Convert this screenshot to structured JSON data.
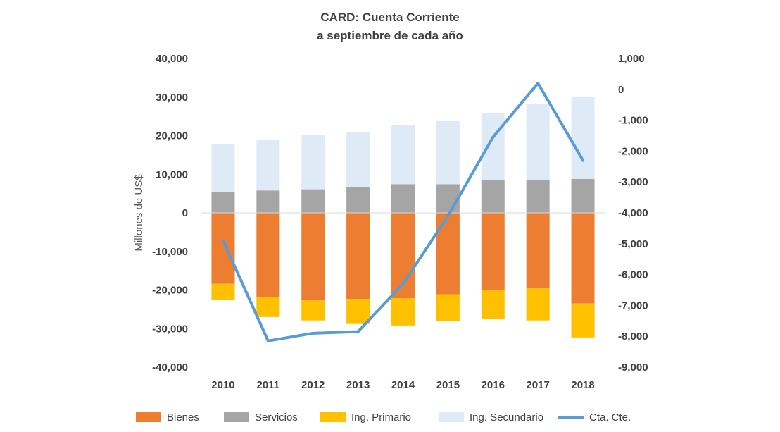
{
  "chart_data": {
    "type": "bar",
    "stacked": true,
    "title": "CARD: Cuenta Corriente",
    "subtitle": "a septiembre de cada año",
    "ylabel": "Millones de US$",
    "y2label": "",
    "categories": [
      "2010",
      "2011",
      "2012",
      "2013",
      "2014",
      "2015",
      "2016",
      "2017",
      "2018"
    ],
    "ylim": [
      -40000,
      40000
    ],
    "y2lim": [
      -9000,
      1000
    ],
    "yticks": [
      "40,000",
      "30,000",
      "20,000",
      "10,000",
      "0",
      "-10,000",
      "-20,000",
      "-30,000",
      "-40,000"
    ],
    "y2ticks": [
      "1,000",
      "0",
      "-1,000",
      "-2,000",
      "-3,000",
      "-4,000",
      "-5,000",
      "-6,000",
      "-7,000",
      "-8,000",
      "-9,000"
    ],
    "series": [
      {
        "name": "Bienes",
        "type": "bar",
        "axis": "left",
        "color": "#ED7D31",
        "values": [
          -18400,
          -21800,
          -22700,
          -22300,
          -22100,
          -21100,
          -20100,
          -19600,
          -23500
        ]
      },
      {
        "name": "Servicios",
        "type": "bar",
        "axis": "left",
        "color": "#A5A5A5",
        "values": [
          5500,
          5800,
          6100,
          6600,
          7400,
          7400,
          8400,
          8400,
          8800
        ]
      },
      {
        "name": "Ing. Primario",
        "type": "bar",
        "axis": "left",
        "color": "#FFC000",
        "values": [
          -4100,
          -5200,
          -5200,
          -6500,
          -7100,
          -7000,
          -7300,
          -8300,
          -8800
        ]
      },
      {
        "name": "Ing. Secundario",
        "type": "bar",
        "axis": "left",
        "color": "#DEEBF7",
        "values": [
          12200,
          13200,
          14000,
          14400,
          15400,
          16400,
          17500,
          19800,
          21200
        ]
      },
      {
        "name": "Cta. Cte.",
        "type": "line",
        "axis": "right",
        "color": "#5B9BD5",
        "values": [
          -4900,
          -8150,
          -7900,
          -7850,
          -6300,
          -4100,
          -1550,
          200,
          -2300
        ]
      }
    ],
    "legend_position": "bottom",
    "grid": false
  }
}
